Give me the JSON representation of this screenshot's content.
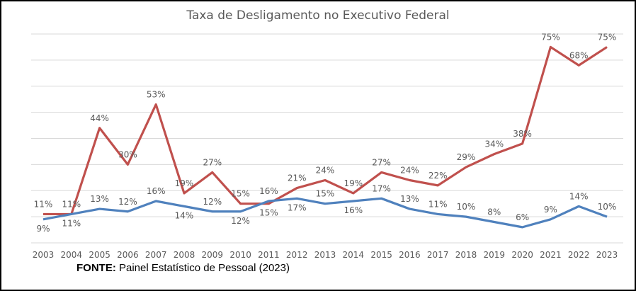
{
  "chart_data": {
    "type": "line",
    "title": "Taxa de Desligamento no Executivo Federal",
    "categories": [
      "2003",
      "2004",
      "2005",
      "2006",
      "2007",
      "2008",
      "2009",
      "2010",
      "2011",
      "2012",
      "2013",
      "2014",
      "2015",
      "2016",
      "2017",
      "2018",
      "2019",
      "2020",
      "2021",
      "2022",
      "2023"
    ],
    "series": [
      {
        "color": "#C0504D",
        "values": [
          11,
          11,
          44,
          30,
          53,
          19,
          27,
          15,
          15,
          21,
          24,
          19,
          27,
          24,
          22,
          29,
          34,
          38,
          75,
          68,
          75
        ]
      },
      {
        "color": "#4F81BD",
        "values": [
          9,
          11,
          13,
          12,
          16,
          14,
          12,
          12,
          16,
          17,
          15,
          16,
          17,
          13,
          11,
          10,
          8,
          6,
          9,
          14,
          10
        ]
      }
    ],
    "ylim": [
      0,
      80
    ],
    "ygrid_step": 10,
    "grid": true,
    "y_tick_labels_shown": false,
    "data_label_suffix": "%"
  },
  "source": {
    "label": "FONTE:",
    "text": "Painel Estatístico de Pessoal (2023)"
  }
}
